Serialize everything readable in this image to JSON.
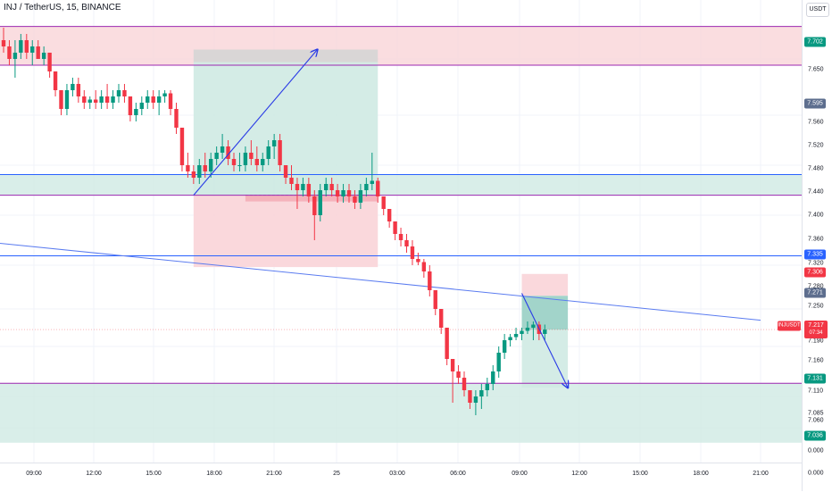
{
  "header": {
    "title": "INJ / TetherUS, 15, BINANCE",
    "unit_button": "USDT"
  },
  "colors": {
    "up": "#089981",
    "down": "#f23645",
    "zone_red": "#f9d4d8",
    "zone_green": "#cfeae3",
    "zone_gray": "#d5d5d5",
    "line_purple": "#9c27b0",
    "line_blue": "#2962ff",
    "arrow_blue": "#2a3be6"
  },
  "price_axis": {
    "ticks": [
      "7.650",
      "7.595",
      "7.560",
      "7.520",
      "7.480",
      "7.440",
      "7.400",
      "7.360",
      "7.320",
      "7.280",
      "7.250",
      "7.190",
      "7.160",
      "7.110",
      "7.085",
      "7.060",
      "0.000",
      "0.000"
    ],
    "tags": [
      {
        "label": "7.702",
        "kind": "green"
      },
      {
        "label": "7.595",
        "kind": "slate"
      },
      {
        "label": "7.335",
        "kind": "blue"
      },
      {
        "label": "7.306",
        "kind": "red"
      },
      {
        "label": "7.271",
        "kind": "slate"
      },
      {
        "label": "7.131",
        "kind": "green"
      },
      {
        "label": "7.036",
        "kind": "green"
      }
    ],
    "last_price": {
      "value": "7.217",
      "countdown": "07:34"
    }
  },
  "symbol_tag": "INJUSDT",
  "time_axis": {
    "ticks": [
      "09:00",
      "12:00",
      "15:00",
      "18:00",
      "21:00",
      "25",
      "03:00",
      "06:00",
      "09:00",
      "12:00",
      "15:00",
      "18:00",
      "21:00"
    ]
  },
  "chart_data": {
    "type": "candlestick",
    "symbol": "INJ / TetherUS",
    "interval": "15",
    "exchange": "BINANCE",
    "candles": [
      [
        7.68,
        7.7,
        7.66,
        7.67
      ],
      [
        7.67,
        7.68,
        7.64,
        7.65
      ],
      [
        7.65,
        7.68,
        7.62,
        7.66
      ],
      [
        7.66,
        7.69,
        7.65,
        7.68
      ],
      [
        7.68,
        7.69,
        7.65,
        7.66
      ],
      [
        7.66,
        7.68,
        7.64,
        7.67
      ],
      [
        7.67,
        7.68,
        7.65,
        7.65
      ],
      [
        7.65,
        7.67,
        7.64,
        7.66
      ],
      [
        7.66,
        7.66,
        7.62,
        7.63
      ],
      [
        7.63,
        7.63,
        7.59,
        7.6
      ],
      [
        7.6,
        7.6,
        7.56,
        7.57
      ],
      [
        7.57,
        7.61,
        7.56,
        7.6
      ],
      [
        7.6,
        7.62,
        7.59,
        7.61
      ],
      [
        7.61,
        7.62,
        7.58,
        7.59
      ],
      [
        7.59,
        7.6,
        7.57,
        7.58
      ],
      [
        7.58,
        7.59,
        7.57,
        7.585
      ],
      [
        7.585,
        7.6,
        7.57,
        7.58
      ],
      [
        7.58,
        7.6,
        7.57,
        7.59
      ],
      [
        7.59,
        7.61,
        7.57,
        7.58
      ],
      [
        7.58,
        7.6,
        7.57,
        7.59
      ],
      [
        7.59,
        7.61,
        7.58,
        7.6
      ],
      [
        7.6,
        7.61,
        7.58,
        7.59
      ],
      [
        7.59,
        7.59,
        7.55,
        7.56
      ],
      [
        7.56,
        7.58,
        7.55,
        7.57
      ],
      [
        7.57,
        7.59,
        7.56,
        7.58
      ],
      [
        7.58,
        7.6,
        7.57,
        7.59
      ],
      [
        7.59,
        7.6,
        7.57,
        7.58
      ],
      [
        7.58,
        7.6,
        7.56,
        7.59
      ],
      [
        7.59,
        7.6,
        7.58,
        7.595
      ],
      [
        7.595,
        7.6,
        7.56,
        7.57
      ],
      [
        7.57,
        7.58,
        7.53,
        7.54
      ],
      [
        7.54,
        7.54,
        7.47,
        7.48
      ],
      [
        7.48,
        7.5,
        7.46,
        7.47
      ],
      [
        7.47,
        7.48,
        7.45,
        7.46
      ],
      [
        7.46,
        7.49,
        7.45,
        7.48
      ],
      [
        7.48,
        7.5,
        7.46,
        7.47
      ],
      [
        7.47,
        7.5,
        7.46,
        7.49
      ],
      [
        7.49,
        7.51,
        7.48,
        7.5
      ],
      [
        7.5,
        7.53,
        7.49,
        7.51
      ],
      [
        7.51,
        7.52,
        7.48,
        7.49
      ],
      [
        7.49,
        7.5,
        7.47,
        7.48
      ],
      [
        7.48,
        7.5,
        7.47,
        7.48
      ],
      [
        7.48,
        7.51,
        7.47,
        7.5
      ],
      [
        7.5,
        7.52,
        7.48,
        7.49
      ],
      [
        7.49,
        7.51,
        7.47,
        7.48
      ],
      [
        7.48,
        7.5,
        7.47,
        7.49
      ],
      [
        7.49,
        7.52,
        7.48,
        7.51
      ],
      [
        7.51,
        7.53,
        7.49,
        7.52
      ],
      [
        7.52,
        7.53,
        7.47,
        7.48
      ],
      [
        7.48,
        7.48,
        7.45,
        7.46
      ],
      [
        7.46,
        7.48,
        7.44,
        7.45
      ],
      [
        7.45,
        7.46,
        7.41,
        7.44
      ],
      [
        7.44,
        7.46,
        7.43,
        7.45
      ],
      [
        7.45,
        7.46,
        7.42,
        7.43
      ],
      [
        7.43,
        7.44,
        7.36,
        7.4
      ],
      [
        7.4,
        7.45,
        7.39,
        7.44
      ],
      [
        7.44,
        7.46,
        7.43,
        7.45
      ],
      [
        7.45,
        7.46,
        7.43,
        7.44
      ],
      [
        7.44,
        7.45,
        7.42,
        7.43
      ],
      [
        7.43,
        7.45,
        7.42,
        7.44
      ],
      [
        7.44,
        7.45,
        7.42,
        7.43
      ],
      [
        7.43,
        7.44,
        7.41,
        7.42
      ],
      [
        7.42,
        7.45,
        7.41,
        7.44
      ],
      [
        7.44,
        7.46,
        7.43,
        7.45
      ],
      [
        7.45,
        7.5,
        7.44,
        7.455
      ],
      [
        7.455,
        7.46,
        7.42,
        7.43
      ],
      [
        7.43,
        7.43,
        7.4,
        7.41
      ],
      [
        7.41,
        7.41,
        7.38,
        7.39
      ],
      [
        7.39,
        7.39,
        7.36,
        7.37
      ],
      [
        7.37,
        7.38,
        7.35,
        7.36
      ],
      [
        7.36,
        7.37,
        7.34,
        7.35
      ],
      [
        7.35,
        7.36,
        7.32,
        7.33
      ],
      [
        7.33,
        7.34,
        7.32,
        7.325
      ],
      [
        7.325,
        7.33,
        7.3,
        7.31
      ],
      [
        7.31,
        7.32,
        7.27,
        7.28
      ],
      [
        7.28,
        7.28,
        7.24,
        7.25
      ],
      [
        7.25,
        7.25,
        7.21,
        7.22
      ],
      [
        7.22,
        7.22,
        7.16,
        7.17
      ],
      [
        7.17,
        7.17,
        7.1,
        7.15
      ],
      [
        7.15,
        7.16,
        7.13,
        7.14
      ],
      [
        7.14,
        7.15,
        7.11,
        7.12
      ],
      [
        7.12,
        7.12,
        7.09,
        7.1
      ],
      [
        7.1,
        7.12,
        7.08,
        7.11
      ],
      [
        7.11,
        7.13,
        7.09,
        7.12
      ],
      [
        7.12,
        7.14,
        7.11,
        7.13
      ],
      [
        7.13,
        7.16,
        7.12,
        7.15
      ],
      [
        7.15,
        7.19,
        7.14,
        7.18
      ],
      [
        7.18,
        7.21,
        7.17,
        7.2
      ],
      [
        7.2,
        7.21,
        7.19,
        7.205
      ],
      [
        7.205,
        7.22,
        7.2,
        7.21
      ],
      [
        7.21,
        7.22,
        7.2,
        7.215
      ],
      [
        7.215,
        7.23,
        7.21,
        7.22
      ],
      [
        7.22,
        7.23,
        7.2,
        7.225
      ],
      [
        7.225,
        7.23,
        7.2,
        7.21
      ],
      [
        7.21,
        7.225,
        7.2,
        7.217
      ]
    ],
    "ylim": [
      7.03,
      7.73
    ],
    "horizontal_lines": [
      {
        "price": 7.702,
        "color": "purple"
      },
      {
        "price": 7.64,
        "color": "purple"
      },
      {
        "price": 7.465,
        "color": "blue"
      },
      {
        "price": 7.432,
        "color": "purple"
      },
      {
        "price": 7.335,
        "color": "blue"
      },
      {
        "price": 7.131,
        "color": "purple"
      }
    ],
    "zones": [
      {
        "kind": "supply",
        "from": 7.64,
        "to": 7.702
      },
      {
        "kind": "demand",
        "from": 7.432,
        "to": 7.465
      },
      {
        "kind": "demand",
        "from": 7.036,
        "to": 7.131
      }
    ],
    "positions": [
      {
        "type": "long",
        "entry": 7.432,
        "target": 7.645,
        "stop": 7.317
      },
      {
        "type": "short",
        "entry": 7.271,
        "target": 7.124,
        "stop": 7.306
      }
    ],
    "trendline": {
      "from": 7.355,
      "to": 7.232
    }
  }
}
